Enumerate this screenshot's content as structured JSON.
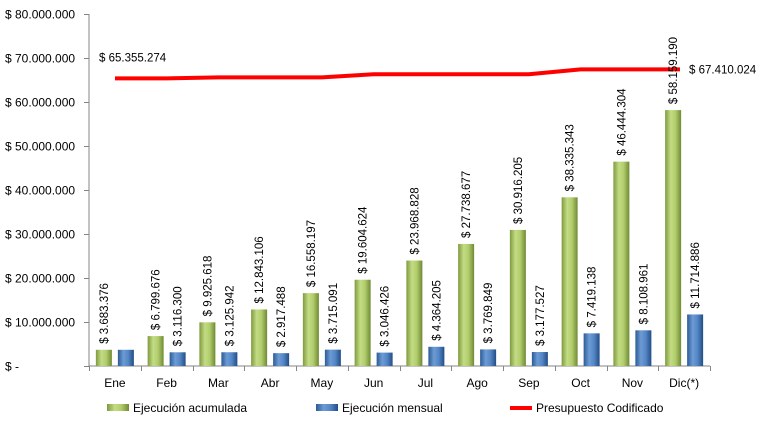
{
  "chart_data": {
    "type": "bar",
    "categories": [
      "Ene",
      "Feb",
      "Mar",
      "Abr",
      "May",
      "Jun",
      "Jul",
      "Ago",
      "Sep",
      "Oct",
      "Nov",
      "Dic(*)"
    ],
    "series": [
      {
        "name": "Ejecución acumulada",
        "kind": "bar",
        "color": "#9bbb59",
        "values": [
          3683376,
          6799676,
          9925618,
          12843106,
          16558197,
          19604624,
          23968828,
          27738677,
          30916205,
          38335343,
          46444304,
          58159190
        ],
        "labels": [
          "$ 3.683.376",
          "$ 6.799.676",
          "$ 9.925.618",
          "$ 12.843.106",
          "$ 16.558.197",
          "$ 19.604.624",
          "$ 23.968.828",
          "$ 27.738.677",
          "$ 30.916.205",
          "$ 38.335.343",
          "$ 46.444.304",
          "$ 58.159.190"
        ]
      },
      {
        "name": "Ejecución mensual",
        "kind": "bar",
        "color": "#4f81bd",
        "values": [
          3683376,
          3116300,
          3125942,
          2917488,
          3715091,
          3046426,
          4364205,
          3769849,
          3177527,
          7419138,
          8108961,
          11714886
        ],
        "labels": [
          "",
          "$ 3.116.300",
          "$ 3.125.942",
          "$ 2.917.488",
          "$ 3.715.091",
          "$ 3.046.426",
          "$ 4.364.205",
          "$ 3.769.849",
          "$ 3.177.527",
          "$ 7.419.138",
          "$ 8.108.961",
          "$ 11.714.886"
        ]
      },
      {
        "name": "Presupuesto Codificado",
        "kind": "line",
        "color": "#ff0000",
        "values": [
          65355274,
          65355274,
          65600000,
          65600000,
          65600000,
          66300000,
          66300000,
          66300000,
          66300000,
          67410024,
          67410024,
          67410024
        ],
        "labels": [
          "$ 65.355.274",
          "",
          "",
          "",
          "",
          "",
          "",
          "",
          "",
          "",
          "",
          "$ 67.410.024"
        ]
      }
    ],
    "ylim": [
      0,
      80000000
    ],
    "yticks": [
      0,
      10000000,
      20000000,
      30000000,
      40000000,
      50000000,
      60000000,
      70000000,
      80000000
    ],
    "ytick_labels": [
      "$ -",
      "$ 10.000.000",
      "$ 20.000.000",
      "$ 30.000.000",
      "$ 40.000.000",
      "$ 50.000.000",
      "$ 60.000.000",
      "$ 70.000.000",
      "$ 80.000.000"
    ],
    "title": "",
    "xlabel": "",
    "ylabel": "",
    "grid": false,
    "legend_position": "bottom"
  }
}
